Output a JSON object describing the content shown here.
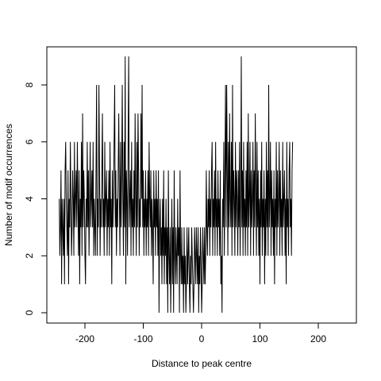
{
  "chart_data": {
    "type": "line",
    "title": "",
    "xlabel": "Distance to peak centre",
    "ylabel": "Number of motif occurrences",
    "xlim": [
      -250,
      250
    ],
    "ylim": [
      0,
      9
    ],
    "x_ticks": [
      -200,
      -100,
      0,
      100,
      200
    ],
    "x_tick_labels": [
      "-200",
      "-100",
      "0",
      "100",
      "200"
    ],
    "y_ticks": [
      0,
      2,
      4,
      6,
      8
    ],
    "y_tick_labels": [
      "0",
      "2",
      "4",
      "6",
      "8"
    ],
    "grid": false,
    "legend": "none",
    "line_color": "#000000",
    "series": [
      {
        "x_start": -244,
        "x_step": 1,
        "values": [
          4,
          2,
          3,
          5,
          1,
          4,
          3,
          2,
          4,
          1,
          5,
          6,
          4,
          3,
          2,
          5,
          1,
          4,
          3,
          6,
          4,
          2,
          3,
          5,
          4,
          2,
          6,
          3,
          4,
          5,
          3,
          6,
          4,
          2,
          5,
          1,
          4,
          3,
          6,
          2,
          7,
          3,
          5,
          4,
          2,
          1,
          4,
          3,
          6,
          3,
          5,
          2,
          4,
          6,
          3,
          4,
          5,
          3,
          6,
          2,
          4,
          3,
          2,
          5,
          8,
          2,
          4,
          3,
          8,
          5,
          2,
          4,
          3,
          5,
          7,
          3,
          4,
          2,
          6,
          3,
          4,
          5,
          2,
          4,
          3,
          5,
          2,
          6,
          3,
          4,
          1,
          5,
          3,
          4,
          6,
          8,
          3,
          5,
          2,
          4,
          3,
          5,
          7,
          4,
          2,
          6,
          3,
          5,
          8,
          4,
          2,
          6,
          3,
          9,
          1,
          5,
          4,
          2,
          6,
          9,
          3,
          4,
          5,
          2,
          6,
          3,
          4,
          2,
          5,
          3,
          7,
          4,
          2,
          6,
          3,
          7,
          5,
          2,
          4,
          3,
          7,
          4,
          8,
          3,
          5,
          2,
          4,
          3,
          5,
          2,
          4,
          3,
          5,
          2,
          6,
          4,
          3,
          5,
          2,
          4,
          3,
          1,
          5,
          3,
          4,
          2,
          5,
          3,
          4,
          2,
          5,
          0,
          3,
          4,
          2,
          3,
          1,
          4,
          2,
          5,
          1,
          3,
          2,
          4,
          1,
          3,
          0,
          5,
          2,
          1,
          3,
          0,
          2,
          4,
          1,
          3,
          0,
          5,
          2,
          1,
          3,
          2,
          1,
          4,
          2,
          3,
          0,
          5,
          2,
          1,
          3,
          1,
          2,
          0,
          3,
          1,
          2,
          0,
          1,
          3,
          1,
          2,
          3,
          1,
          0,
          2,
          1,
          3,
          2,
          1,
          0,
          1,
          3,
          2,
          1,
          3,
          2,
          1,
          3,
          0,
          2,
          1,
          3,
          2,
          0,
          1,
          3,
          2,
          1,
          3,
          1,
          2,
          5,
          3,
          2,
          4,
          3,
          5,
          2,
          4,
          3,
          5,
          6,
          2,
          4,
          3,
          5,
          2,
          6,
          3,
          4,
          2,
          5,
          3,
          4,
          2,
          5,
          1,
          2,
          0,
          4,
          3,
          6,
          2,
          5,
          8,
          3,
          8,
          5,
          2,
          6,
          3,
          7,
          4,
          3,
          6,
          2,
          8,
          3,
          5,
          4,
          2,
          6,
          3,
          5,
          4,
          2,
          5,
          3,
          6,
          2,
          4,
          9,
          3,
          5,
          2,
          6,
          3,
          4,
          2,
          5,
          3,
          6,
          2,
          7,
          3,
          4,
          6,
          2,
          5,
          3,
          4,
          6,
          2,
          5,
          3,
          7,
          4,
          2,
          6,
          3,
          5,
          2,
          4,
          1,
          5,
          3,
          6,
          2,
          4,
          3,
          5,
          1,
          4,
          2,
          6,
          3,
          5,
          2,
          8,
          3,
          4,
          6,
          2,
          5,
          3,
          4,
          2,
          5,
          1,
          4,
          3,
          6,
          2,
          5,
          3,
          4,
          6,
          2,
          5,
          3,
          4,
          2,
          6,
          3,
          4,
          5,
          2,
          4,
          1,
          6,
          3,
          4,
          2,
          5,
          6,
          3,
          4,
          2,
          5,
          6
        ]
      }
    ]
  }
}
